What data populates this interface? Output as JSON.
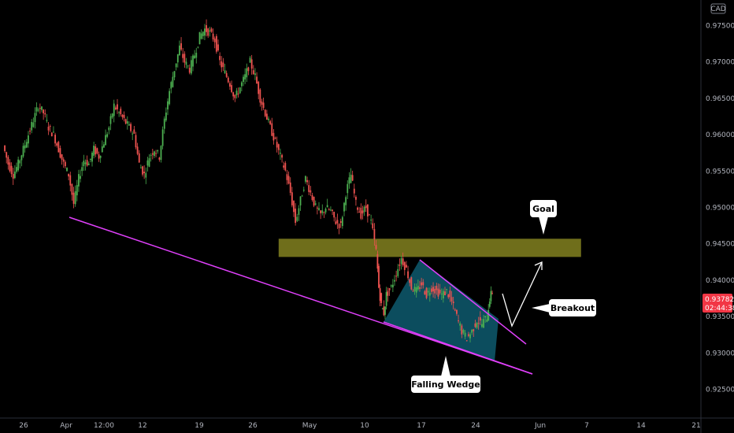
{
  "currency_badge": "CAD",
  "chart_data": {
    "type": "candlestick",
    "symbol_currency": "CAD",
    "y_ticks": [
      "0.97500",
      "0.97000",
      "0.96500",
      "0.96000",
      "0.95500",
      "0.95000",
      "0.94500",
      "0.94000",
      "0.93500",
      "0.93000",
      "0.92500"
    ],
    "y_tick_values": [
      0.975,
      0.97,
      0.965,
      0.96,
      0.955,
      0.95,
      0.945,
      0.94,
      0.935,
      0.93,
      0.925
    ],
    "ylim": [
      0.9215,
      0.9785
    ],
    "x_ticks": [
      "26",
      "Apr",
      "12:00",
      "12",
      "19",
      "26",
      "May",
      "10",
      "17",
      "24",
      "Jun",
      "7",
      "14",
      "21"
    ],
    "last_price": "0.93782",
    "countdown": "02:44:38",
    "colors": {
      "up": "#26a69a",
      "up_bright": "#4caf50",
      "down": "#ef5350",
      "trendline": "#e040fb",
      "goal_zone": "#7b7a1e",
      "wedge_fill": "#0e5a6e",
      "price_label": "#f23645"
    },
    "price_path": [
      [
        0,
        0.9585
      ],
      [
        4,
        0.956
      ],
      [
        8,
        0.9545
      ],
      [
        12,
        0.956
      ],
      [
        16,
        0.958
      ],
      [
        20,
        0.96
      ],
      [
        24,
        0.962
      ],
      [
        28,
        0.964
      ],
      [
        32,
        0.963
      ],
      [
        36,
        0.961
      ],
      [
        40,
        0.96
      ],
      [
        44,
        0.958
      ],
      [
        48,
        0.956
      ],
      [
        52,
        0.9545
      ],
      [
        56,
        0.9505
      ],
      [
        60,
        0.954
      ],
      [
        64,
        0.9565
      ],
      [
        68,
        0.956
      ],
      [
        72,
        0.958
      ],
      [
        76,
        0.957
      ],
      [
        80,
        0.959
      ],
      [
        84,
        0.961
      ],
      [
        88,
        0.964
      ],
      [
        92,
        0.963
      ],
      [
        96,
        0.962
      ],
      [
        100,
        0.961
      ],
      [
        104,
        0.96
      ],
      [
        108,
        0.956
      ],
      [
        112,
        0.9545
      ],
      [
        116,
        0.957
      ],
      [
        120,
        0.958
      ],
      [
        124,
        0.957
      ],
      [
        128,
        0.962
      ],
      [
        132,
        0.966
      ],
      [
        136,
        0.969
      ],
      [
        140,
        0.972
      ],
      [
        144,
        0.97
      ],
      [
        148,
        0.969
      ],
      [
        152,
        0.971
      ],
      [
        156,
        0.9735
      ],
      [
        160,
        0.9745
      ],
      [
        164,
        0.974
      ],
      [
        168,
        0.973
      ],
      [
        172,
        0.97
      ],
      [
        176,
        0.9685
      ],
      [
        180,
        0.967
      ],
      [
        184,
        0.965
      ],
      [
        188,
        0.9665
      ],
      [
        192,
        0.968
      ],
      [
        196,
        0.97
      ],
      [
        200,
        0.968
      ],
      [
        204,
        0.965
      ],
      [
        208,
        0.963
      ],
      [
        212,
        0.961
      ],
      [
        216,
        0.959
      ],
      [
        220,
        0.957
      ],
      [
        224,
        0.955
      ],
      [
        228,
        0.952
      ],
      [
        232,
        0.948
      ],
      [
        236,
        0.951
      ],
      [
        240,
        0.954
      ],
      [
        244,
        0.952
      ],
      [
        248,
        0.95
      ],
      [
        252,
        0.949
      ],
      [
        256,
        0.95
      ],
      [
        260,
        0.9495
      ],
      [
        264,
        0.948
      ],
      [
        268,
        0.9475
      ],
      [
        272,
        0.952
      ],
      [
        276,
        0.9545
      ],
      [
        280,
        0.9505
      ],
      [
        284,
        0.949
      ],
      [
        288,
        0.95
      ],
      [
        292,
        0.948
      ],
      [
        296,
        0.944
      ],
      [
        298,
        0.939
      ],
      [
        300,
        0.9365
      ],
      [
        302,
        0.9355
      ],
      [
        304,
        0.938
      ],
      [
        308,
        0.939
      ],
      [
        312,
        0.941
      ],
      [
        316,
        0.943
      ],
      [
        320,
        0.9415
      ],
      [
        324,
        0.939
      ],
      [
        328,
        0.9385
      ],
      [
        332,
        0.9395
      ],
      [
        336,
        0.938
      ],
      [
        340,
        0.939
      ],
      [
        344,
        0.9385
      ],
      [
        348,
        0.938
      ],
      [
        352,
        0.9385
      ],
      [
        356,
        0.937
      ],
      [
        360,
        0.935
      ],
      [
        364,
        0.933
      ],
      [
        368,
        0.932
      ],
      [
        372,
        0.933
      ],
      [
        376,
        0.9345
      ],
      [
        380,
        0.934
      ],
      [
        384,
        0.935
      ],
      [
        386,
        0.9375
      ],
      [
        388,
        0.9385
      ]
    ],
    "trendline": {
      "from": [
        88,
        0.949
      ],
      "to": [
        419,
        0.9283
      ]
    },
    "goal_zone": {
      "x_start": 218,
      "x_end": 458,
      "y_low": 0.9432,
      "y_high": 0.9457
    },
    "wedge": {
      "upper": {
        "from": [
          303,
          0.935
        ],
        "to": [
          418,
          0.9317
        ]
      },
      "lower": {
        "from": [
          333,
          0.9435
        ],
        "to": [
          418,
          0.9317
        ]
      }
    },
    "annotations": {
      "goal": "Goal",
      "breakout": "Breakout",
      "falling_wedge": "Falling Wedge"
    }
  }
}
